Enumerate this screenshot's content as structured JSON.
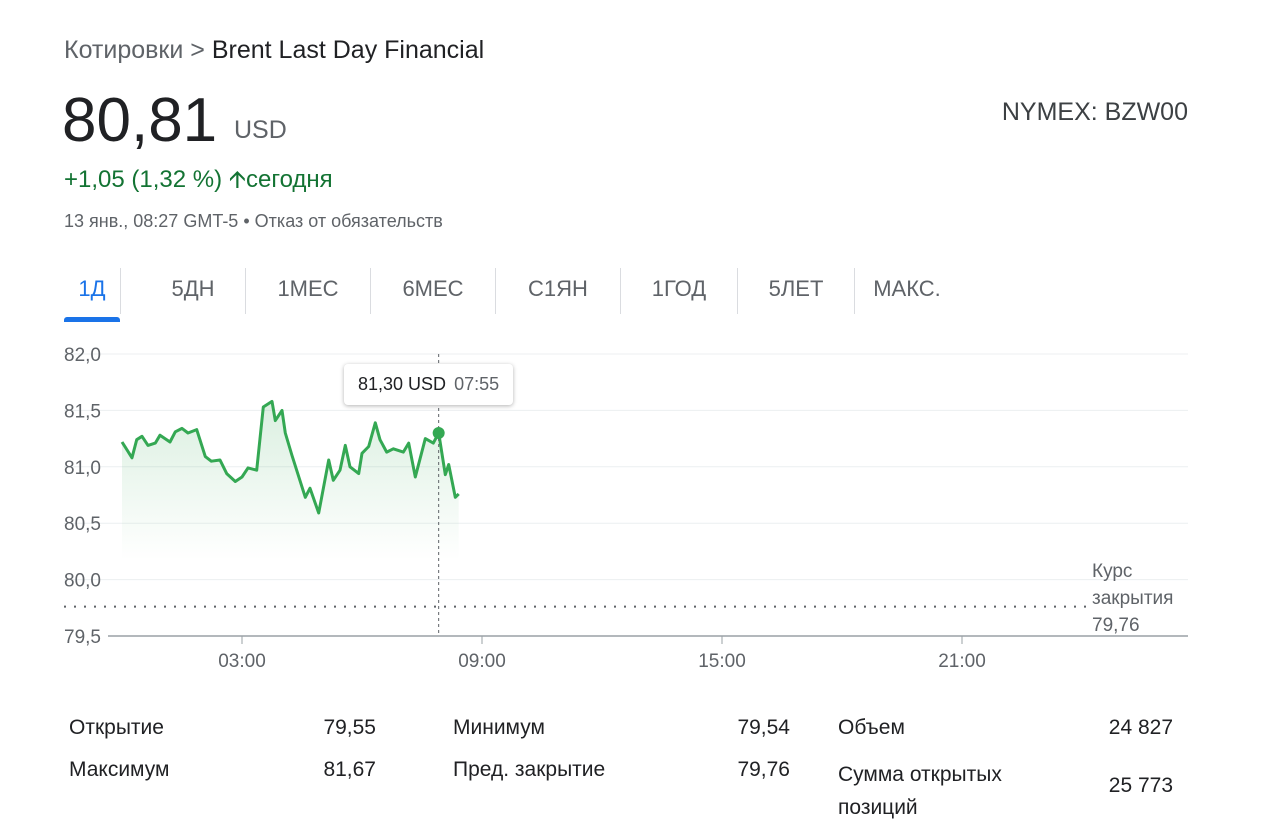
{
  "breadcrumb": {
    "parent": "Котировки",
    "separator": ">",
    "current": "Brent Last Day Financial"
  },
  "quote": {
    "price": "80,81",
    "currency": "USD",
    "exchange": "NYMEX: BZW00",
    "change": "+1,05 (1,32 %)",
    "change_icon": "arrow-up-icon",
    "change_period": "сегодня",
    "timestamp": "13 янв., 08:27 GMT-5",
    "separator": "•",
    "disclaimer": "Отказ от обязательств"
  },
  "tabs": [
    {
      "label": "1Д",
      "active": true
    },
    {
      "label": "5ДН"
    },
    {
      "label": "1МЕС"
    },
    {
      "label": "6МЕС"
    },
    {
      "label": "С1ЯН"
    },
    {
      "label": "1ГОД"
    },
    {
      "label": "5ЛЕТ"
    },
    {
      "label": "МАКС."
    }
  ],
  "colors": {
    "line": "#34a853",
    "gain": "#137333",
    "accent": "#1a73e8"
  },
  "chart_data": {
    "type": "area",
    "ylim": [
      79.5,
      82.0
    ],
    "xlim": [
      "00:00",
      "24:00"
    ],
    "y_ticks": [
      "82,0",
      "81,5",
      "81,0",
      "80,5",
      "80,0",
      "79,5"
    ],
    "y_tick_values": [
      82.0,
      81.5,
      81.0,
      80.5,
      80.0,
      79.5
    ],
    "x_ticks": [
      "03:00",
      "09:00",
      "15:00",
      "21:00"
    ],
    "grid": true,
    "series": [
      {
        "x": [
          "00:00",
          "00:15",
          "00:22",
          "00:30",
          "00:39",
          "00:50",
          "00:57",
          "01:12",
          "01:20",
          "01:30",
          "01:39",
          "01:52",
          "02:05",
          "02:14",
          "02:27",
          "02:37",
          "02:50",
          "03:00",
          "03:09",
          "03:22",
          "03:32",
          "03:45",
          "03:50",
          "04:00",
          "04:05",
          "04:15",
          "04:35",
          "04:42",
          "04:55",
          "05:10",
          "05:17",
          "05:27",
          "05:35",
          "05:42",
          "05:55",
          "06:00",
          "06:10",
          "06:20",
          "06:27",
          "06:37",
          "06:47",
          "07:02",
          "07:10",
          "07:20",
          "07:35",
          "07:47",
          "07:55",
          "08:05",
          "08:10",
          "08:20",
          "08:25"
        ],
        "y": [
          81.22,
          81.08,
          81.24,
          81.27,
          81.19,
          81.21,
          81.28,
          81.22,
          81.31,
          81.34,
          81.3,
          81.33,
          81.09,
          81.05,
          81.06,
          80.94,
          80.87,
          80.91,
          80.99,
          80.97,
          81.53,
          81.58,
          81.41,
          81.5,
          81.3,
          81.1,
          80.73,
          80.81,
          80.59,
          81.06,
          80.88,
          80.97,
          81.19,
          81.0,
          80.94,
          81.12,
          81.18,
          81.39,
          81.24,
          81.13,
          81.16,
          81.13,
          81.21,
          80.91,
          81.25,
          81.21,
          81.3,
          80.93,
          81.02,
          80.73,
          80.76
        ]
      }
    ],
    "prev_close": {
      "label_line1": "Курс",
      "label_line2": "закрытия",
      "value": 79.76,
      "value_label": "79,76"
    },
    "tooltip": {
      "price": "81,30 USD",
      "time": "07:55",
      "x": "07:55",
      "y": 81.3
    }
  },
  "stats": {
    "col1": [
      {
        "label": "Открытие",
        "value": "79,55"
      },
      {
        "label": "Максимум",
        "value": "81,67"
      }
    ],
    "col2": [
      {
        "label": "Минимум",
        "value": "79,54"
      },
      {
        "label": "Пред. закрытие",
        "value": "79,76"
      }
    ],
    "col3": [
      {
        "label": "Объем",
        "value": "24 827"
      },
      {
        "label": "Сумма открытых позиций",
        "value": "25 773"
      }
    ]
  }
}
